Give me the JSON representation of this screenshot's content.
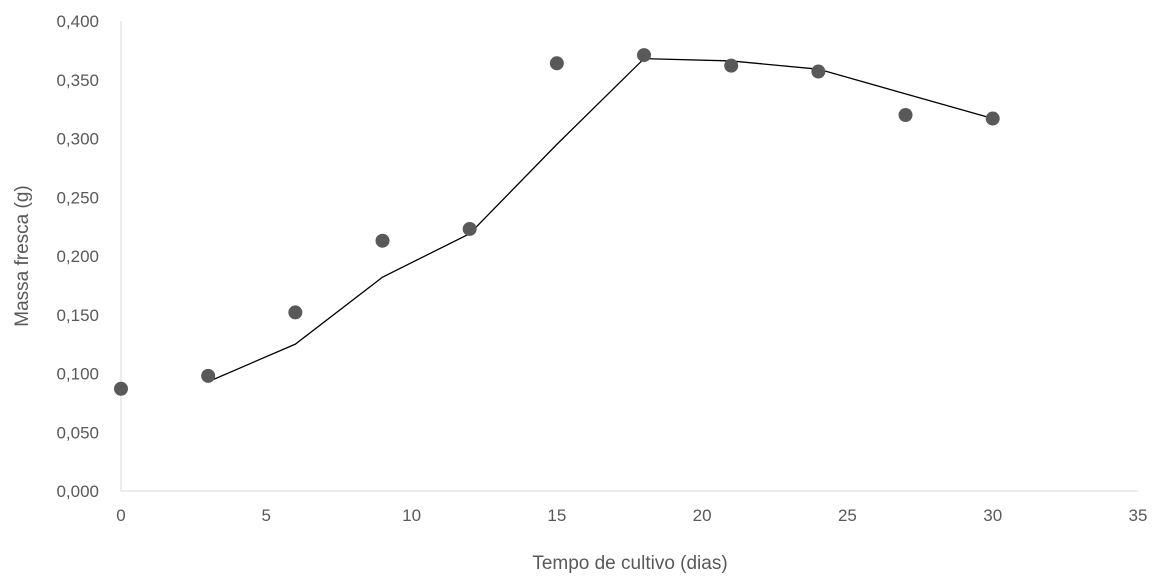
{
  "chart_data": {
    "type": "scatter",
    "title": "",
    "xlabel": "Tempo de cultivo (dias)",
    "ylabel": "Massa fresca (g)",
    "xlim": [
      0,
      35
    ],
    "ylim": [
      0,
      0.4
    ],
    "x_ticks": [
      0,
      5,
      10,
      15,
      20,
      25,
      30,
      35
    ],
    "x_tick_labels": [
      "0",
      "5",
      "10",
      "15",
      "20",
      "25",
      "30",
      "35"
    ],
    "y_ticks": [
      0,
      0.05,
      0.1,
      0.15,
      0.2,
      0.25,
      0.3,
      0.35,
      0.4
    ],
    "y_tick_labels": [
      "0,000",
      "0,050",
      "0,100",
      "0,150",
      "0,200",
      "0,250",
      "0,300",
      "0,350",
      "0,400"
    ],
    "grid": false,
    "legend": "none",
    "series": [
      {
        "kind": "points",
        "color": "#595959",
        "x": [
          0,
          3,
          6,
          9,
          12,
          15,
          18,
          21,
          24,
          27,
          30
        ],
        "y": [
          0.087,
          0.098,
          0.152,
          0.213,
          0.223,
          0.364,
          0.371,
          0.362,
          0.357,
          0.32,
          0.317
        ]
      },
      {
        "kind": "line",
        "color": "#000000",
        "x": [
          3,
          6,
          9,
          12,
          15,
          18,
          21,
          24,
          27,
          30
        ],
        "y": [
          0.093,
          0.125,
          0.182,
          0.219,
          0.295,
          0.368,
          0.366,
          0.359,
          0.338,
          0.317
        ]
      }
    ]
  }
}
